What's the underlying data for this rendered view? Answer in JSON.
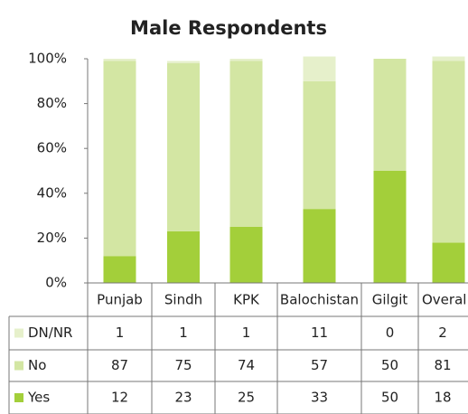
{
  "chart_data": {
    "type": "bar",
    "stacked": true,
    "title": "Male Respondents",
    "categories": [
      "Punjab",
      "Sindh",
      "KPK",
      "Balochistan",
      "Gilgit",
      "Overal"
    ],
    "series": [
      {
        "name": "Yes",
        "color": "#a3cf3a",
        "values": [
          12,
          23,
          25,
          33,
          50,
          18
        ]
      },
      {
        "name": "No",
        "color": "#d3e6a3",
        "values": [
          87,
          75,
          74,
          57,
          50,
          81
        ]
      },
      {
        "name": "DN/NR",
        "color": "#e6f0cb",
        "values": [
          1,
          1,
          1,
          11,
          0,
          2
        ]
      }
    ],
    "ylim": [
      0,
      100
    ],
    "yticks": [
      {
        "value": 0,
        "label": "0%"
      },
      {
        "value": 20,
        "label": "20%"
      },
      {
        "value": 40,
        "label": "40%"
      },
      {
        "value": 60,
        "label": "60%"
      },
      {
        "value": 80,
        "label": "80%"
      },
      {
        "value": 100,
        "label": "100%"
      }
    ],
    "grid": false
  }
}
